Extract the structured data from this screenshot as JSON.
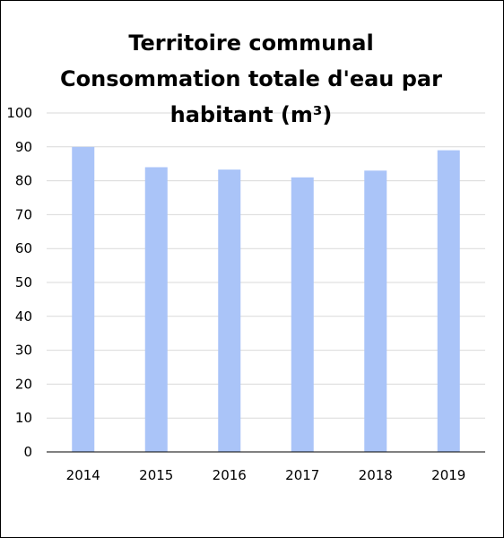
{
  "chart_data": {
    "type": "bar",
    "title": "Territoire communal Consommation totale d'eau par habitant (m³)",
    "title_lines": [
      "Territoire communal",
      "Consommation totale d'eau par",
      "habitant (m³)"
    ],
    "categories": [
      "2014",
      "2015",
      "2016",
      "2017",
      "2018",
      "2019"
    ],
    "values": [
      90,
      84,
      83.3,
      81,
      83,
      89
    ],
    "xlabel": "",
    "ylabel": "",
    "ylim": [
      0,
      100
    ],
    "yticks": [
      "0",
      "10",
      "20",
      "30",
      "40",
      "50",
      "60",
      "70",
      "80",
      "90",
      "100"
    ],
    "grid": true,
    "legend": "none",
    "bar_color": "#aac4f8",
    "grid_color": "#d9d9d9",
    "axis_color": "#000000"
  }
}
